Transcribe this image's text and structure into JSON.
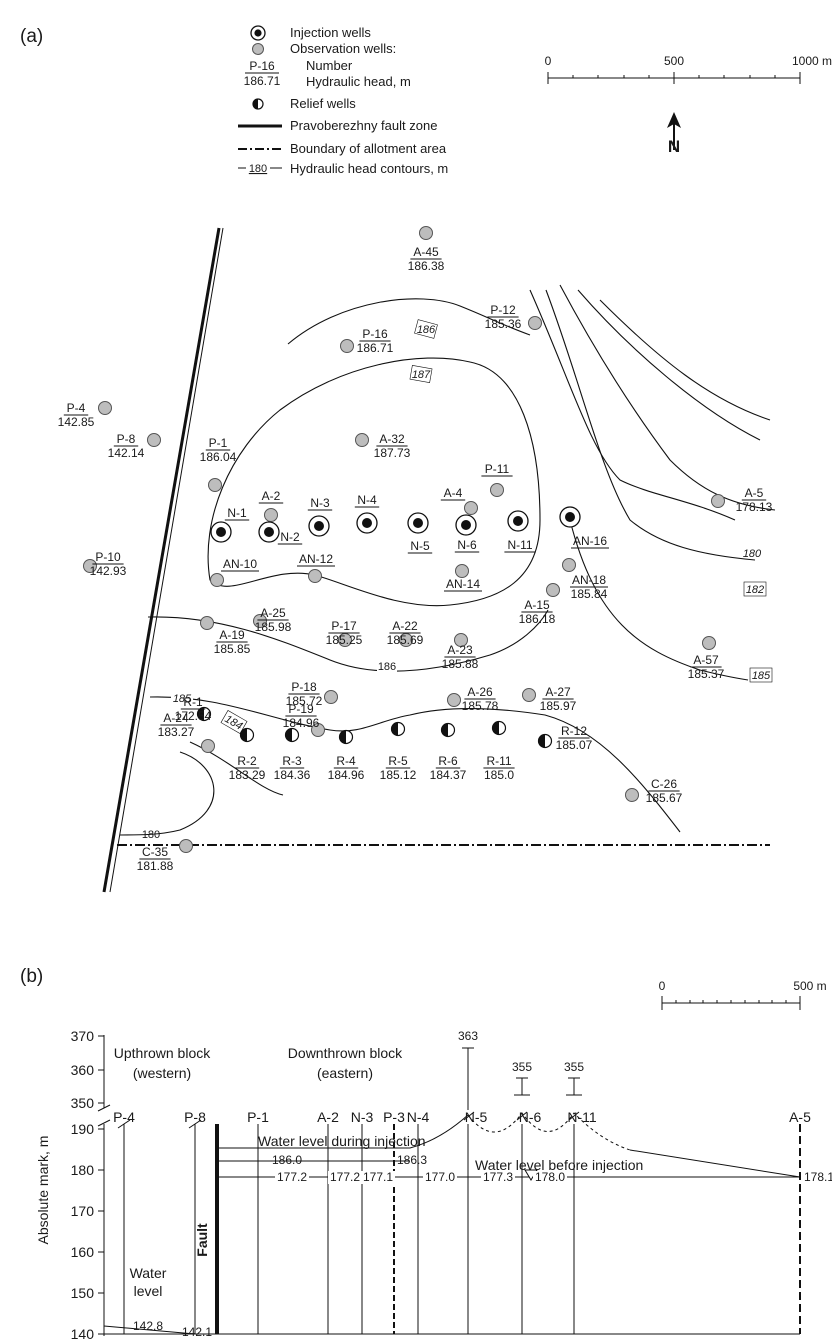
{
  "panel_a": {
    "label": "(a)",
    "legend": {
      "injection": "Injection wells",
      "observation": "Observation wells:",
      "sample_number": "P-16",
      "sample_head": "186.71",
      "number": "Number",
      "head": "Hydraulic head, m",
      "relief": "Relief wells",
      "fault": "Pravoberezhny fault zone",
      "boundary": "Boundary of allotment area",
      "contour_sample": "180",
      "contour": "Hydraulic head contours, m"
    },
    "scale": {
      "t0": "0",
      "t1": "500",
      "t2": "1000 m"
    },
    "north": "N",
    "contour_labels": [
      {
        "id": "c186a",
        "text": "186"
      },
      {
        "id": "c187",
        "text": "187"
      },
      {
        "id": "c180r",
        "text": "180"
      },
      {
        "id": "c182",
        "text": "182"
      },
      {
        "id": "c185r",
        "text": "185"
      },
      {
        "id": "c186b",
        "text": "186"
      },
      {
        "id": "c185l",
        "text": "185"
      },
      {
        "id": "c184",
        "text": "184"
      },
      {
        "id": "c180l",
        "text": "180"
      }
    ],
    "observation_wells": [
      {
        "id": "A-45",
        "head": "186.38"
      },
      {
        "id": "P-12",
        "head": "185.36"
      },
      {
        "id": "P-16",
        "head": "186.71"
      },
      {
        "id": "P-4",
        "head": "142.85"
      },
      {
        "id": "P-8",
        "head": "142.14"
      },
      {
        "id": "P-1",
        "head": "186.04"
      },
      {
        "id": "A-32",
        "head": "187.73"
      },
      {
        "id": "P-11",
        "head": ""
      },
      {
        "id": "A-4",
        "head": ""
      },
      {
        "id": "A-2",
        "head": ""
      },
      {
        "id": "A-5",
        "head": "178.13"
      },
      {
        "id": "AN-10",
        "head": ""
      },
      {
        "id": "AN-12",
        "head": ""
      },
      {
        "id": "AN-14",
        "head": ""
      },
      {
        "id": "AN-18",
        "head": "185.84"
      },
      {
        "id": "A-15",
        "head": "186.18"
      },
      {
        "id": "P-10",
        "head": "142.93"
      },
      {
        "id": "A-25",
        "head": "185.98"
      },
      {
        "id": "P-17",
        "head": "185.25"
      },
      {
        "id": "A-22",
        "head": "185.69"
      },
      {
        "id": "A-23",
        "head": "185.88"
      },
      {
        "id": "A-19",
        "head": "185.85"
      },
      {
        "id": "A-57",
        "head": "185.37"
      },
      {
        "id": "P-18",
        "head": "185.72"
      },
      {
        "id": "A-26",
        "head": "185.78"
      },
      {
        "id": "A-27",
        "head": "185.97"
      },
      {
        "id": "A-24",
        "head": "183.27"
      },
      {
        "id": "P-19",
        "head": "184.96"
      },
      {
        "id": "C-26",
        "head": "185.67"
      },
      {
        "id": "C-35",
        "head": "181.88"
      }
    ],
    "injection_wells": [
      "N-1",
      "N-2",
      "N-3",
      "N-4",
      "N-5",
      "N-6",
      "N-11",
      "AN-16"
    ],
    "relief_wells": [
      {
        "id": "R-1",
        "head": "172.54"
      },
      {
        "id": "R-2",
        "head": "183.29"
      },
      {
        "id": "R-3",
        "head": "184.36"
      },
      {
        "id": "R-4",
        "head": "184.96"
      },
      {
        "id": "R-5",
        "head": "185.12"
      },
      {
        "id": "R-6",
        "head": "184.37"
      },
      {
        "id": "R-11",
        "head": "185.0"
      },
      {
        "id": "R-12",
        "head": "185.07"
      }
    ]
  },
  "panel_b": {
    "label": "(b)",
    "scale": {
      "t0": "0",
      "t1": "500 m"
    },
    "y_axis_label": "Absolute mark, m",
    "y_ticks_upper": [
      "370",
      "360",
      "350"
    ],
    "y_ticks_lower": [
      "190",
      "180",
      "170",
      "160",
      "150",
      "140"
    ],
    "upthrown": [
      "Upthrown block",
      "(western)"
    ],
    "downthrown": [
      "Downthrown block",
      "(eastern)"
    ],
    "fault_label": "Fault",
    "water_level_label": [
      "Water",
      "level"
    ],
    "during_label": "Water level during injection",
    "before_label": "Water level before injection",
    "well_names": [
      "P-4",
      "P-8",
      "P-1",
      "A-2",
      "N-3",
      "P-3",
      "N-4",
      "N-5",
      "N-6",
      "N-11",
      "A-5"
    ],
    "top_marks": [
      "363",
      "355",
      "355"
    ],
    "during_values": [
      "186.0",
      "186.3"
    ],
    "before_values": [
      "177.2",
      "177.2",
      "177.1",
      "177.0",
      "177.3",
      "178.0",
      "178.1"
    ],
    "upthrown_values": [
      "142.8",
      "142.1"
    ]
  }
}
